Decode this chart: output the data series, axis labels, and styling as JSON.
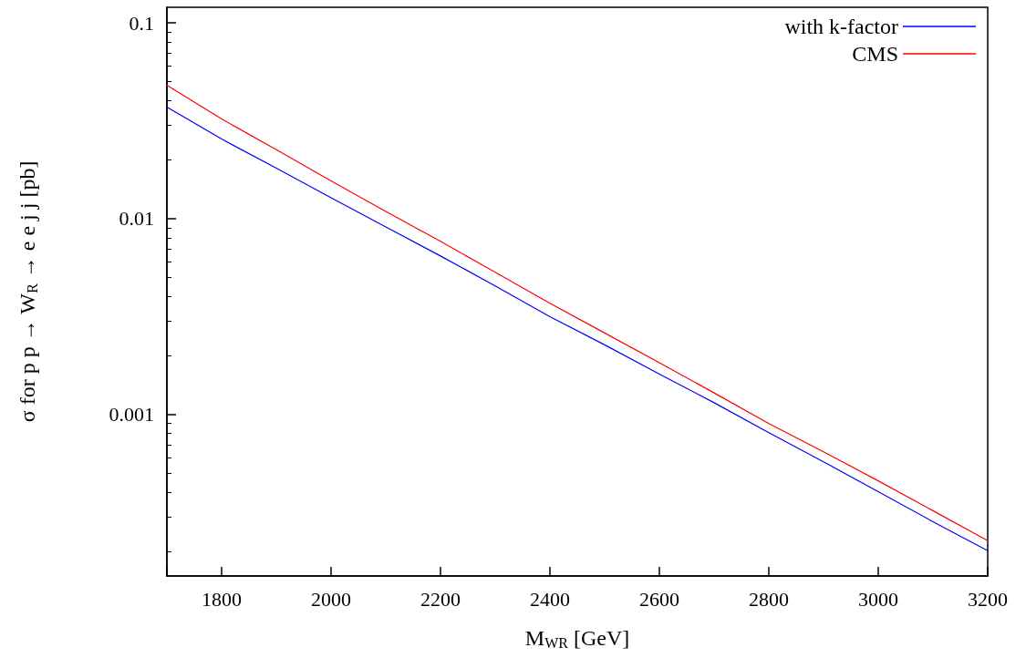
{
  "chart_data": {
    "type": "line",
    "xlabel": "M$_{WR}$ [GeV]",
    "ylabel": "σ for p p → W$_{R}$ → e e j j [pb]",
    "x": [
      1700,
      1800,
      1900,
      2000,
      2100,
      2200,
      2300,
      2400,
      2500,
      2600,
      2700,
      2800,
      2900,
      3000,
      3100,
      3200
    ],
    "series": [
      {
        "name": "with k-factor",
        "color": "#0000ff",
        "values": [
          0.0371,
          0.0255,
          0.0181,
          0.0128,
          0.00908,
          0.00645,
          0.00454,
          0.00316,
          0.00227,
          0.00161,
          0.00115,
          0.000808,
          0.000574,
          0.000404,
          0.000284,
          0.000202
        ]
      },
      {
        "name": "CMS",
        "color": "#ff0000",
        "values": [
          0.048,
          0.0323,
          0.0225,
          0.0156,
          0.0109,
          0.00766,
          0.00533,
          0.0037,
          0.00261,
          0.00184,
          0.00129,
          0.0009,
          0.000646,
          0.000459,
          0.000323,
          0.000227
        ]
      }
    ],
    "xlim": [
      1700,
      3200
    ],
    "xticks": [
      {
        "value": 1700,
        "label": null
      },
      1800,
      2000,
      2200,
      2400,
      2600,
      2800,
      3000,
      3200
    ],
    "ylim": [
      0.00015,
      0.12
    ],
    "yticks": [
      0.001,
      0.01,
      0.1
    ],
    "log": "y",
    "grid": false,
    "legend": "top right",
    "marker": "none",
    "line_style": "solid"
  }
}
